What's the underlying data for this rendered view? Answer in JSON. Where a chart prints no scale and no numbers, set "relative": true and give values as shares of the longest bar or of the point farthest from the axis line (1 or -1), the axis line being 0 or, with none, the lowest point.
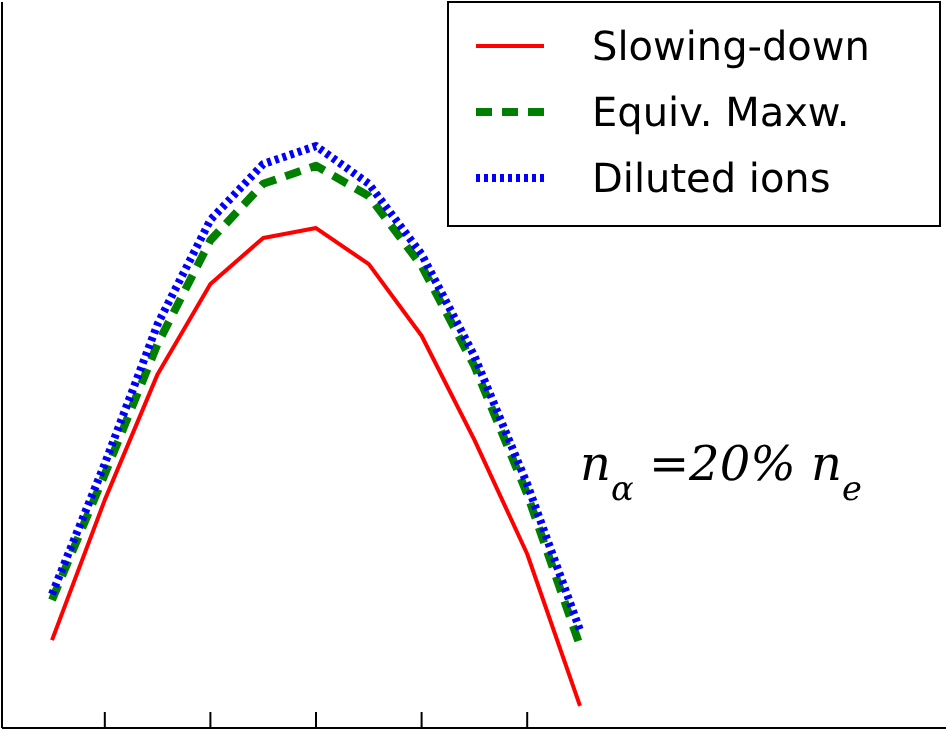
{
  "chart_data": {
    "type": "line",
    "relative": true,
    "categories": [
      null,
      null,
      null,
      null,
      null,
      null,
      null,
      null,
      null,
      null,
      null
    ],
    "legend": "top right",
    "annotations": [
      "n$_{α}$ =20% n$_{e}$"
    ],
    "series": [
      {
        "name": "Slowing-down",
        "color": "#ff0000",
        "line_style": "solid",
        "values": [
          0.151,
          0.392,
          0.608,
          0.763,
          0.842,
          0.859,
          0.797,
          0.674,
          0.495,
          0.299,
          0.038
        ]
      },
      {
        "name": "Equiv. Maxw.",
        "color": "#007f00",
        "line_style": "dashed",
        "values": [
          0.22,
          0.436,
          0.66,
          0.838,
          0.935,
          0.966,
          0.914,
          0.794,
          0.622,
          0.402,
          0.141
        ]
      },
      {
        "name": "Diluted ions",
        "color": "#0000ff",
        "line_style": "dotted",
        "values": [
          0.23,
          0.454,
          0.694,
          0.873,
          0.969,
          1.0,
          0.935,
          0.814,
          0.639,
          0.419,
          0.168
        ]
      }
    ]
  }
}
